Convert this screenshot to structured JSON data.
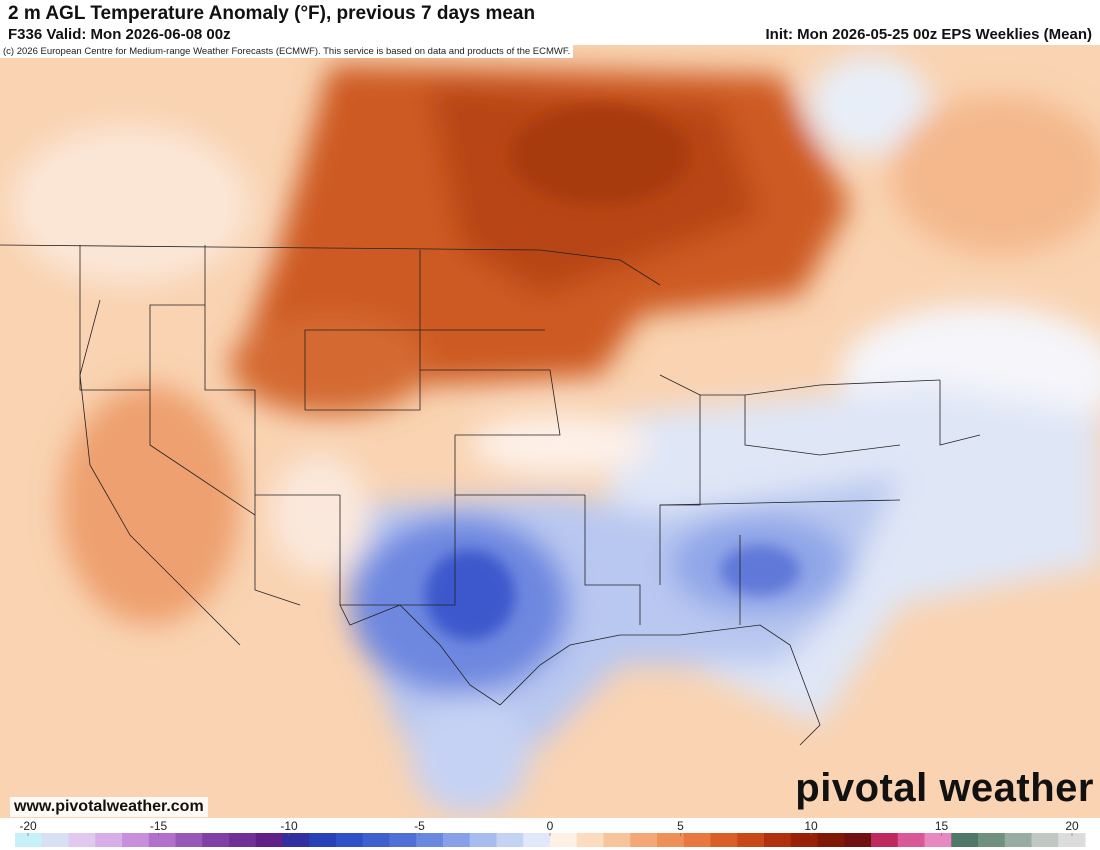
{
  "header": {
    "title": "2 m AGL Temperature Anomaly (°F), previous 7 days mean",
    "valid": "F336 Valid: Mon 2026-06-08 00z",
    "init": "Init: Mon 2026-05-25 00z EPS Weeklies (Mean)",
    "credit": "(c) 2026 European Centre for Medium-range Weather Forecasts (ECMWF). This service is based on data and products of the ECMWF."
  },
  "footer": {
    "website": "www.pivotalweather.com",
    "logo": "pivotal weather"
  },
  "colorbar": {
    "min": -20,
    "max": 20,
    "ticks": [
      -20,
      -15,
      -10,
      -5,
      0,
      5,
      10,
      15,
      20
    ],
    "colors": [
      "#c8f0f8",
      "#d8e0f4",
      "#e0c8ee",
      "#d8aee8",
      "#c890dc",
      "#b070cc",
      "#9858b8",
      "#8040a8",
      "#703098",
      "#602088",
      "#3030a0",
      "#2840b8",
      "#3050c8",
      "#4060d0",
      "#5070d8",
      "#6a88e0",
      "#88a0e8",
      "#a8bcf0",
      "#c4d2f4",
      "#e0e8fa",
      "#fdf0e4",
      "#fcdcc0",
      "#f8c49c",
      "#f4a878",
      "#ef9058",
      "#e87840",
      "#d86028",
      "#c84818",
      "#b03010",
      "#982008",
      "#801808",
      "#701010",
      "#c02860",
      "#d85898",
      "#e888c0",
      "#507868",
      "#709080",
      "#98aca4",
      "#c0c8c4",
      "#dcdcdc"
    ]
  }
}
